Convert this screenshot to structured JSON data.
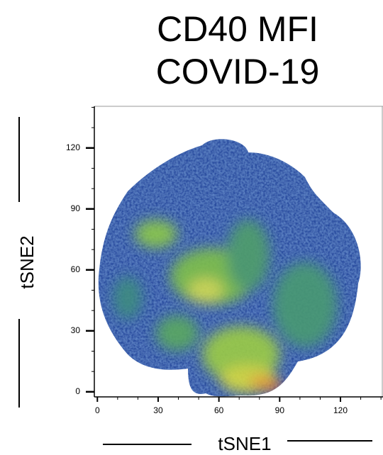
{
  "chart_data": {
    "type": "density-map",
    "title_lines": [
      "CD40 MFI",
      "COVID-19"
    ],
    "x_label": "tSNE1",
    "y_label": "tSNE2",
    "xlim": [
      -1.5,
      141
    ],
    "ylim": [
      -2.5,
      140.5
    ],
    "xticks": [
      0,
      30,
      60,
      90,
      120
    ],
    "yticks": [
      0,
      30,
      60,
      90,
      120
    ],
    "x_minor_ticks": [
      10,
      20,
      40,
      50,
      70,
      80,
      100,
      110,
      130,
      140
    ],
    "y_minor_ticks": [
      10,
      20,
      40,
      50,
      70,
      80,
      100,
      110,
      130,
      140
    ]
  }
}
